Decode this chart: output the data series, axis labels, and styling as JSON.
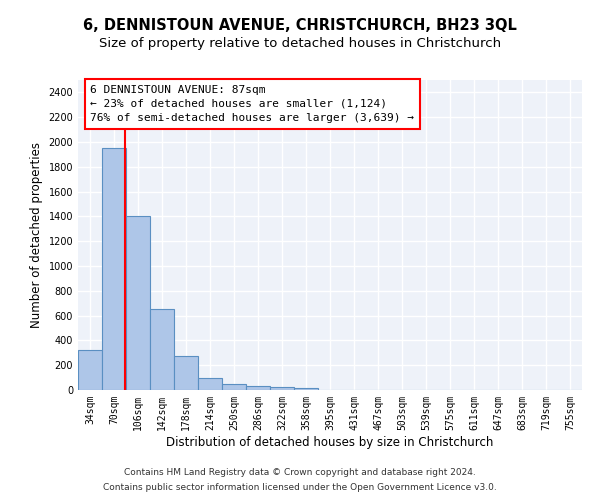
{
  "title": "6, DENNISTOUN AVENUE, CHRISTCHURCH, BH23 3QL",
  "subtitle": "Size of property relative to detached houses in Christchurch",
  "xlabel": "Distribution of detached houses by size in Christchurch",
  "ylabel": "Number of detached properties",
  "categories": [
    "34sqm",
    "70sqm",
    "106sqm",
    "142sqm",
    "178sqm",
    "214sqm",
    "250sqm",
    "286sqm",
    "322sqm",
    "358sqm",
    "395sqm",
    "431sqm",
    "467sqm",
    "503sqm",
    "539sqm",
    "575sqm",
    "611sqm",
    "647sqm",
    "683sqm",
    "719sqm",
    "755sqm"
  ],
  "values": [
    325,
    1950,
    1400,
    650,
    275,
    100,
    45,
    35,
    25,
    20,
    0,
    0,
    0,
    0,
    0,
    0,
    0,
    0,
    0,
    0,
    0
  ],
  "bar_color": "#aec6e8",
  "bar_edge_color": "#5a8fc2",
  "bar_edge_width": 0.8,
  "ylim": [
    0,
    2500
  ],
  "yticks": [
    0,
    200,
    400,
    600,
    800,
    1000,
    1200,
    1400,
    1600,
    1800,
    2000,
    2200,
    2400
  ],
  "red_line_x": 1.47,
  "annotation_line1": "6 DENNISTOUN AVENUE: 87sqm",
  "annotation_line2": "← 23% of detached houses are smaller (1,124)",
  "annotation_line3": "76% of semi-detached houses are larger (3,639) →",
  "footnote1": "Contains HM Land Registry data © Crown copyright and database right 2024.",
  "footnote2": "Contains public sector information licensed under the Open Government Licence v3.0.",
  "background_color": "#eef2f9",
  "grid_color": "#ffffff",
  "title_fontsize": 10.5,
  "subtitle_fontsize": 9.5,
  "xlabel_fontsize": 8.5,
  "ylabel_fontsize": 8.5,
  "tick_fontsize": 7,
  "annotation_fontsize": 8,
  "footnote_fontsize": 6.5
}
